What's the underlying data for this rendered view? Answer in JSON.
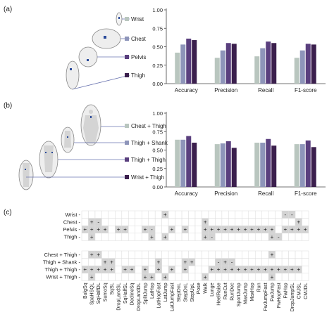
{
  "panel_a": {
    "tag": "(a)",
    "legend": [
      "Wrist",
      "Chest",
      "Pelvis",
      "Thigh"
    ],
    "marker_colors": [
      "#b9c6bf",
      "#8e95ba",
      "#5a3f7e",
      "#3b1f4d"
    ]
  },
  "panel_b": {
    "tag": "(b)",
    "legend": [
      "Chest + Thigh",
      "Thigh + Shank",
      "Thigh + Thigh",
      "Wrist + Thigh"
    ],
    "marker_colors": [
      "#b9c6bf",
      "#8e95ba",
      "#5a3f7e",
      "#3b1f4d"
    ]
  },
  "panel_c": {
    "tag": "(c)",
    "rows_top": [
      "Wrist -",
      "Chest -",
      "Pelvis -",
      "Thigh -"
    ],
    "rows_bottom": [
      "Chest + Thigh -",
      "Thigh + Shank -",
      "Thigh + Thigh -",
      "Wrist + Thigh -"
    ],
    "columns": [
      "BulgSq",
      "SpaHSQL",
      "SqHalfDL",
      "SumoSq",
      "SqSL",
      "DropLandSL",
      "SqHalfSL",
      "DeclineSq",
      "DropLandDL",
      "SplitJump",
      "LatHop",
      "LatHopFast",
      "LatJump",
      "LatJumpFast",
      "StepDnL",
      "StepDnL",
      "StepUpL",
      "Pose",
      "Walk",
      "Lunge",
      "HeelRaise",
      "RunCut",
      "RunDec",
      "SportJump",
      "MaxJump",
      "MaxHop",
      "Run",
      "FwJumpFast",
      "FwJump",
      "FwHopFast",
      "FwHop",
      "DropJumpSL",
      "CMJSL",
      "CMJDL"
    ],
    "cells_top": [
      ". . . . . . . . . . . . G+ . . . . . . . . . . . . . . . . . G- G- . .",
      ". G+ G- . . . . . . . . . . . . . . . G+ . . . . . . . . . . . . . G+ .",
      "G+ G+ G+ G+ . G+ G+ . . G+ G- . . G+ . G+ . . G+ G+ G+ G+ G+ G+ G+ G+ G+ G+ G+ . G+ G+ G+ G+",
      ". G+ . . . . . . . . G+ . G+ . . . . . G+ G- . . . . . . . . G+ G- . . . ."
    ],
    "cells_bottom": [
      ". G+ G+ . . . . . . . . . . . . . . . . . . . . . . . . . G+ . . . . .",
      ". . . G+ G+ . . . . . . G+ . . . G+ G+ . . . G- G+ G- . . . . . . . . . . .",
      "G+ G+ G+ G+ G+ . G+ G+ . G+ . G+ . G+ . G+ . . . G+ G+ G+ G+ G+ G+ G+ G+ G+ G+ G+ G+ G+ G+ .",
      ". G+ . . . . . . . G+ G+ . G+ . . . . . G+ . . . . . . . . . G+ . . . . ."
    ]
  },
  "chart_data": [
    {
      "type": "bar",
      "categories": [
        "Accuracy",
        "Precision",
        "Recall",
        "F1-score"
      ],
      "series": [
        {
          "name": "Wrist",
          "color": "#b9c6bf",
          "values": [
            0.42,
            0.35,
            0.37,
            0.35
          ]
        },
        {
          "name": "Chest",
          "color": "#8e95ba",
          "values": [
            0.53,
            0.45,
            0.48,
            0.45
          ]
        },
        {
          "name": "Pelvis",
          "color": "#5a3f7e",
          "values": [
            0.61,
            0.55,
            0.57,
            0.54
          ]
        },
        {
          "name": "Thigh",
          "color": "#3b1f4d",
          "values": [
            0.59,
            0.54,
            0.55,
            0.53
          ]
        }
      ],
      "ylim": [
        0,
        1.0
      ],
      "yticks": [
        "0.00",
        "0.25",
        "0.50",
        "0.75",
        "1.00"
      ],
      "legend": "left"
    },
    {
      "type": "bar",
      "categories": [
        "Accuracy",
        "Precision",
        "Recall",
        "F1-score"
      ],
      "series": [
        {
          "name": "Chest + Thigh",
          "color": "#b9c6bf",
          "values": [
            0.64,
            0.58,
            0.6,
            0.58
          ]
        },
        {
          "name": "Thigh + Shank",
          "color": "#8e95ba",
          "values": [
            0.64,
            0.59,
            0.6,
            0.58
          ]
        },
        {
          "name": "Thigh + Thigh",
          "color": "#5a3f7e",
          "values": [
            0.69,
            0.62,
            0.65,
            0.63
          ]
        },
        {
          "name": "Wrist + Thigh",
          "color": "#3b1f4d",
          "values": [
            0.6,
            0.53,
            0.56,
            0.54
          ]
        }
      ],
      "ylim": [
        0,
        1.0
      ],
      "yticks": [
        "0.00",
        "0.25",
        "0.50",
        "0.75",
        "1.00"
      ],
      "legend": "left"
    }
  ]
}
